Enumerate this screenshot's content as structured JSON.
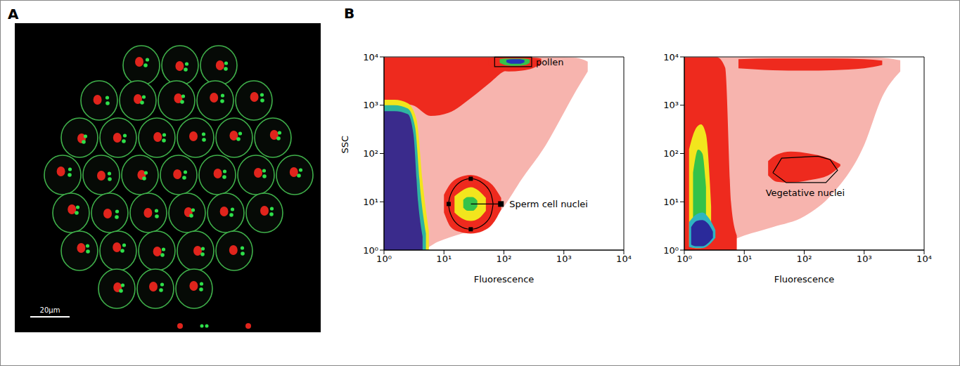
{
  "panel_a": {
    "panel_label": "A",
    "scale_bar_label": "20µm"
  },
  "panel_b": {
    "panel_label": "B"
  },
  "chart_data": [
    {
      "type": "density",
      "x_label": "Fluorescence",
      "y_label": "SSC",
      "log": true,
      "xlim": [
        1,
        10000
      ],
      "ylim": [
        1,
        10000
      ],
      "xticks": [
        {
          "value": 1,
          "label": "10⁰"
        },
        {
          "value": 10,
          "label": "10¹"
        },
        {
          "value": 100,
          "label": "10²"
        },
        {
          "value": 1000,
          "label": "10³"
        },
        {
          "value": 10000,
          "label": "10⁴"
        }
      ],
      "yticks": [
        {
          "value": 1,
          "label": "10⁰"
        },
        {
          "value": 10,
          "label": "10¹"
        },
        {
          "value": 100,
          "label": "10²"
        },
        {
          "value": 1000,
          "label": "10³"
        },
        {
          "value": 10000,
          "label": "10⁴"
        }
      ],
      "regions": [
        {
          "color": "#f7b4ae",
          "x": [
            1,
            2,
            4,
            8,
            20,
            50,
            100,
            200,
            500,
            1000,
            1600,
            2500
          ],
          "low": [
            1,
            1,
            1,
            1.5,
            2.2,
            3,
            8,
            30,
            150,
            700,
            2000,
            5000
          ],
          "high": [
            9800,
            9800,
            9800,
            9800,
            9800,
            9800,
            9800,
            9800,
            9800,
            9800,
            9600,
            8000
          ]
        },
        {
          "color": "#ee2a1e",
          "x": [
            1,
            3,
            6,
            12,
            30,
            60,
            100,
            200,
            400
          ],
          "low": [
            1200,
            1000,
            600,
            700,
            1500,
            3000,
            5000,
            6000,
            6500
          ],
          "high": [
            9800,
            9800,
            9800,
            9800,
            9800,
            9800,
            9800,
            9700,
            9000
          ]
        },
        {
          "color": "#f2e51d",
          "x": [
            1,
            1.5,
            2.5,
            3.5,
            4.5,
            5.6
          ],
          "low": [
            1,
            1,
            1,
            1,
            1,
            1
          ],
          "high": [
            1300,
            1300,
            1100,
            500,
            20,
            2.5
          ]
        },
        {
          "color": "#2fb5a0",
          "x": [
            1,
            1.5,
            2.5,
            3.3,
            4.1,
            5
          ],
          "low": [
            1,
            1,
            1,
            1,
            1,
            1
          ],
          "high": [
            1000,
            1000,
            850,
            350,
            14,
            2.2
          ]
        },
        {
          "color": "#3a2b8c",
          "x": [
            1,
            1.5,
            2.5,
            3.1,
            3.7,
            4.4
          ],
          "low": [
            1,
            1,
            1,
            1,
            1,
            1
          ],
          "high": [
            750,
            750,
            650,
            250,
            10,
            1.9
          ]
        },
        {
          "color": "#ee2a1e",
          "x": [
            10,
            13,
            18,
            28,
            45,
            65,
            90
          ],
          "low": [
            6,
            3,
            2.4,
            2.2,
            2.5,
            3.5,
            7
          ],
          "high": [
            14,
            24,
            32,
            36,
            30,
            22,
            12
          ]
        },
        {
          "color": "#f2e51d",
          "x": [
            15,
            20,
            28,
            38,
            50
          ],
          "low": [
            6,
            4.5,
            4,
            4.5,
            6.5
          ],
          "high": [
            13,
            17,
            20,
            17,
            12
          ]
        },
        {
          "color": "#35c24a",
          "x": [
            21,
            25,
            30,
            36
          ],
          "low": [
            7.5,
            6.5,
            6.5,
            8
          ],
          "high": [
            11,
            12.5,
            12.5,
            10.5
          ]
        },
        {
          "color": "#ee2a1e",
          "x": [
            55,
            80,
            120,
            200,
            300,
            420
          ],
          "low": [
            7000,
            5500,
            5000,
            5200,
            5800,
            7200
          ],
          "high": [
            9600,
            9800,
            9800,
            9800,
            9700,
            9200
          ]
        },
        {
          "color": "#35c24a",
          "x": [
            85,
            110,
            160,
            230,
            270
          ],
          "low": [
            7600,
            6700,
            6500,
            6800,
            7600
          ],
          "high": [
            9000,
            9300,
            9300,
            9200,
            8800
          ]
        },
        {
          "color": "#2437b8",
          "x": [
            110,
            140,
            180,
            220
          ],
          "low": [
            7800,
            7200,
            7200,
            7800
          ],
          "high": [
            8700,
            9000,
            9000,
            8600
          ]
        }
      ],
      "gates": [
        {
          "shape": "rectangle",
          "x": [
            70,
            290
          ],
          "y": [
            6300,
            9900
          ],
          "label": "pollen"
        },
        {
          "shape": "ellipse",
          "x": [
            66,
            59,
            43,
            28,
            18,
            13.5,
            12,
            13.5,
            18,
            28,
            43,
            59,
            66
          ],
          "y": [
            9,
            16,
            25,
            30,
            25,
            16,
            9,
            4.9,
            3.2,
            2.7,
            3.2,
            4.9,
            9
          ],
          "label": "Sperm cell nuclei"
        }
      ]
    },
    {
      "type": "density",
      "x_label": "Fluorescence",
      "log": true,
      "xlim": [
        1,
        10000
      ],
      "ylim": [
        1,
        10000
      ],
      "xticks": [
        {
          "value": 1,
          "label": "10⁰"
        },
        {
          "value": 10,
          "label": "10¹"
        },
        {
          "value": 100,
          "label": "10²"
        },
        {
          "value": 1000,
          "label": "10³"
        },
        {
          "value": 10000,
          "label": "10⁴"
        }
      ],
      "yticks": [
        {
          "value": 1,
          "label": "10⁰"
        },
        {
          "value": 10,
          "label": "10¹"
        },
        {
          "value": 100,
          "label": "10²"
        },
        {
          "value": 1000,
          "label": "10³"
        },
        {
          "value": 10000,
          "label": "10⁴"
        }
      ],
      "regions": [
        {
          "color": "#f7b4ae",
          "x": [
            1,
            4,
            10,
            30,
            100,
            300,
            1000,
            2000,
            4000
          ],
          "low": [
            1,
            1.3,
            2,
            3,
            5,
            15,
            150,
            1500,
            5000
          ],
          "high": [
            9800,
            9800,
            9800,
            9800,
            9800,
            9800,
            9800,
            9600,
            8500
          ]
        },
        {
          "color": "#ee2a1e",
          "x": [
            1,
            2,
            3.5,
            4.8,
            6,
            7.5
          ],
          "low": [
            1,
            1,
            1,
            1,
            1,
            1
          ],
          "high": [
            9800,
            9800,
            9800,
            6000,
            10,
            2
          ]
        },
        {
          "color": "#ee2a1e",
          "x": [
            8,
            30,
            100,
            300,
            1000,
            2000
          ],
          "low": [
            5800,
            5300,
            5200,
            5300,
            5800,
            6800
          ],
          "high": [
            9000,
            9300,
            9300,
            9300,
            9000,
            8400
          ]
        },
        {
          "color": "#ee2a1e",
          "x": [
            25,
            35,
            60,
            120,
            250,
            400
          ],
          "low": [
            35,
            26,
            25,
            28,
            35,
            55
          ],
          "high": [
            70,
            95,
            110,
            100,
            80,
            60
          ]
        },
        {
          "color": "#f2e51d",
          "x": [
            1.2,
            1.5,
            1.9,
            2.3,
            2.8
          ],
          "low": [
            1.2,
            1.1,
            1.1,
            1.3,
            2
          ],
          "high": [
            120,
            300,
            400,
            250,
            8
          ]
        },
        {
          "color": "#35c24a",
          "x": [
            1.4,
            1.7,
            2,
            2.3
          ],
          "low": [
            1.4,
            1.3,
            1.3,
            1.8
          ],
          "high": [
            40,
            120,
            100,
            20
          ]
        },
        {
          "color": "#2fb5c0",
          "x": [
            1.2,
            1.6,
            2,
            2.6,
            3.3
          ],
          "low": [
            1.15,
            1.1,
            1.1,
            1.3,
            1.8
          ],
          "high": [
            3.8,
            5.5,
            6,
            4.5,
            2.6
          ]
        },
        {
          "color": "#2a2a9a",
          "x": [
            1.3,
            1.6,
            2,
            2.5,
            3
          ],
          "low": [
            1.3,
            1.2,
            1.2,
            1.4,
            1.8
          ],
          "high": [
            3,
            4,
            4.2,
            3.5,
            2.4
          ]
        }
      ],
      "gates": [
        {
          "shape": "polygon",
          "x": [
            30,
            42,
            170,
            270,
            360,
            230,
            50,
            30
          ],
          "y": [
            40,
            80,
            88,
            75,
            45,
            25,
            25,
            40
          ],
          "label": "Vegetative nuclei"
        }
      ]
    }
  ]
}
